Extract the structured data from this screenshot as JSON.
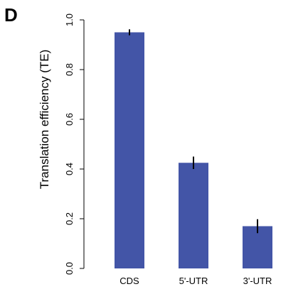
{
  "panel_label": "D",
  "chart_data": {
    "type": "bar",
    "categories": [
      "CDS",
      "5'-UTR",
      "3'-UTR"
    ],
    "values": [
      0.95,
      0.425,
      0.17
    ],
    "errors": [
      0.012,
      0.025,
      0.028
    ],
    "ylabel": "Translation efficiency (TE)",
    "ylim": [
      0.0,
      1.0
    ],
    "yticks": [
      "0.0",
      "0.2",
      "0.4",
      "0.6",
      "0.8",
      "1.0"
    ],
    "bar_color": "#4355a7",
    "grid": false
  }
}
